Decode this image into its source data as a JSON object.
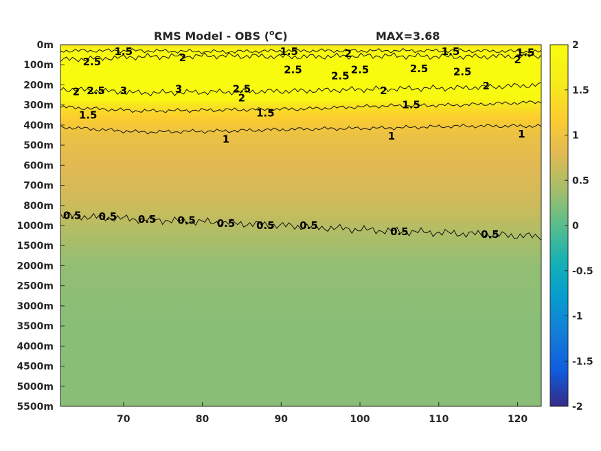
{
  "chart_data": {
    "type": "heatmap",
    "title": "RMS Model - OBS (",
    "title_unit_sup": "o",
    "title_unit_end": "C)",
    "max_label": "MAX=3.68",
    "x_ticks": [
      70,
      80,
      90,
      100,
      110,
      120
    ],
    "xlim": [
      62,
      123
    ],
    "y_tick_labels": [
      "0m",
      "100m",
      "200m",
      "300m",
      "400m",
      "500m",
      "600m",
      "700m",
      "800m",
      "1000m",
      "1500m",
      "2000m",
      "2500m",
      "3000m",
      "3500m",
      "4000m",
      "4500m",
      "5000m",
      "5500m"
    ],
    "colorbar_ticks": [
      2,
      1.5,
      1,
      0.5,
      0,
      -0.5,
      -1,
      -1.5,
      -2
    ],
    "colorbar_range": [
      -2,
      2
    ],
    "colormap": "parula",
    "depth_profile": [
      {
        "depth_index": 0,
        "value": 1.5
      },
      {
        "depth_index": 0.3,
        "value": 1.9
      },
      {
        "depth_index": 1,
        "value": 2.6
      },
      {
        "depth_index": 2,
        "value": 2.6
      },
      {
        "depth_index": 2.7,
        "value": 1.9
      },
      {
        "depth_index": 3,
        "value": 1.5
      },
      {
        "depth_index": 3.6,
        "value": 1.2
      },
      {
        "depth_index": 4.5,
        "value": 0.95
      },
      {
        "depth_index": 6,
        "value": 0.8
      },
      {
        "depth_index": 7.5,
        "value": 0.7
      },
      {
        "depth_index": 8.5,
        "value": 0.6
      },
      {
        "depth_index": 9.5,
        "value": 0.45
      },
      {
        "depth_index": 11,
        "value": 0.3
      },
      {
        "depth_index": 14,
        "value": 0.25
      },
      {
        "depth_index": 18,
        "value": 0.25
      }
    ],
    "contours": [
      {
        "level": "1.5",
        "y_index": [
          0.3,
          0.3,
          0.35,
          0.3,
          0.3,
          0.3,
          0.35
        ]
      },
      {
        "level": "2",
        "y_index": [
          0.75,
          0.6,
          0.55,
          0.6,
          0.55,
          0.6,
          0.55
        ]
      },
      {
        "level": "2",
        "y_index": [
          2.2,
          2.4,
          2.35,
          2.3,
          2.2,
          2.15,
          2.0
        ]
      },
      {
        "level": "1.5",
        "y_index": [
          3.1,
          3.3,
          3.25,
          3.2,
          3.05,
          3.0,
          2.85
        ]
      },
      {
        "level": "1",
        "y_index": [
          4.1,
          4.35,
          4.3,
          4.2,
          4.15,
          4.05,
          4.05
        ]
      },
      {
        "level": "0.5",
        "y_index": [
          8.5,
          8.7,
          8.85,
          9.05,
          9.25,
          9.4,
          9.55
        ]
      }
    ],
    "contour_labels": [
      {
        "text": "1.5",
        "x": 70,
        "y_index": 0.35
      },
      {
        "text": "2",
        "x": 77.5,
        "y_index": 0.65
      },
      {
        "text": "1.5",
        "x": 91,
        "y_index": 0.35
      },
      {
        "text": "2",
        "x": 98.5,
        "y_index": 0.45
      },
      {
        "text": "1.5",
        "x": 111.5,
        "y_index": 0.35
      },
      {
        "text": "1.5",
        "x": 121,
        "y_index": 0.4
      },
      {
        "text": "2",
        "x": 120,
        "y_index": 0.75
      },
      {
        "text": "2.5",
        "x": 66,
        "y_index": 0.85
      },
      {
        "text": "2.5",
        "x": 91.5,
        "y_index": 1.25
      },
      {
        "text": "2.5",
        "x": 100,
        "y_index": 1.25
      },
      {
        "text": "2.5",
        "x": 113,
        "y_index": 1.35
      },
      {
        "text": "2.5",
        "x": 107.5,
        "y_index": 1.2
      },
      {
        "text": "2.5",
        "x": 97.5,
        "y_index": 1.55
      },
      {
        "text": "2",
        "x": 64,
        "y_index": 2.35
      },
      {
        "text": "2.5",
        "x": 66.5,
        "y_index": 2.3
      },
      {
        "text": "3",
        "x": 70,
        "y_index": 2.3
      },
      {
        "text": "3",
        "x": 77,
        "y_index": 2.2
      },
      {
        "text": "2.5",
        "x": 85,
        "y_index": 2.2
      },
      {
        "text": "2",
        "x": 85,
        "y_index": 2.65
      },
      {
        "text": "2",
        "x": 103,
        "y_index": 2.3
      },
      {
        "text": "2",
        "x": 116,
        "y_index": 2.05
      },
      {
        "text": "1.5",
        "x": 65.5,
        "y_index": 3.5
      },
      {
        "text": "1.5",
        "x": 88,
        "y_index": 3.4
      },
      {
        "text": "1.5",
        "x": 106.5,
        "y_index": 3.0
      },
      {
        "text": "1",
        "x": 83,
        "y_index": 4.7
      },
      {
        "text": "1",
        "x": 104,
        "y_index": 4.55
      },
      {
        "text": "1",
        "x": 120.5,
        "y_index": 4.45
      },
      {
        "text": "0.5",
        "x": 63.5,
        "y_index": 8.5
      },
      {
        "text": "0.5",
        "x": 68,
        "y_index": 8.55
      },
      {
        "text": "0.5",
        "x": 73,
        "y_index": 8.7
      },
      {
        "text": "0.5",
        "x": 78,
        "y_index": 8.75
      },
      {
        "text": "0.5",
        "x": 83,
        "y_index": 8.9
      },
      {
        "text": "0.5",
        "x": 88,
        "y_index": 9.0
      },
      {
        "text": "0.5",
        "x": 93.5,
        "y_index": 9.0
      },
      {
        "text": "0.5",
        "x": 105,
        "y_index": 9.3
      },
      {
        "text": "0.5",
        "x": 116.5,
        "y_index": 9.45
      }
    ]
  }
}
